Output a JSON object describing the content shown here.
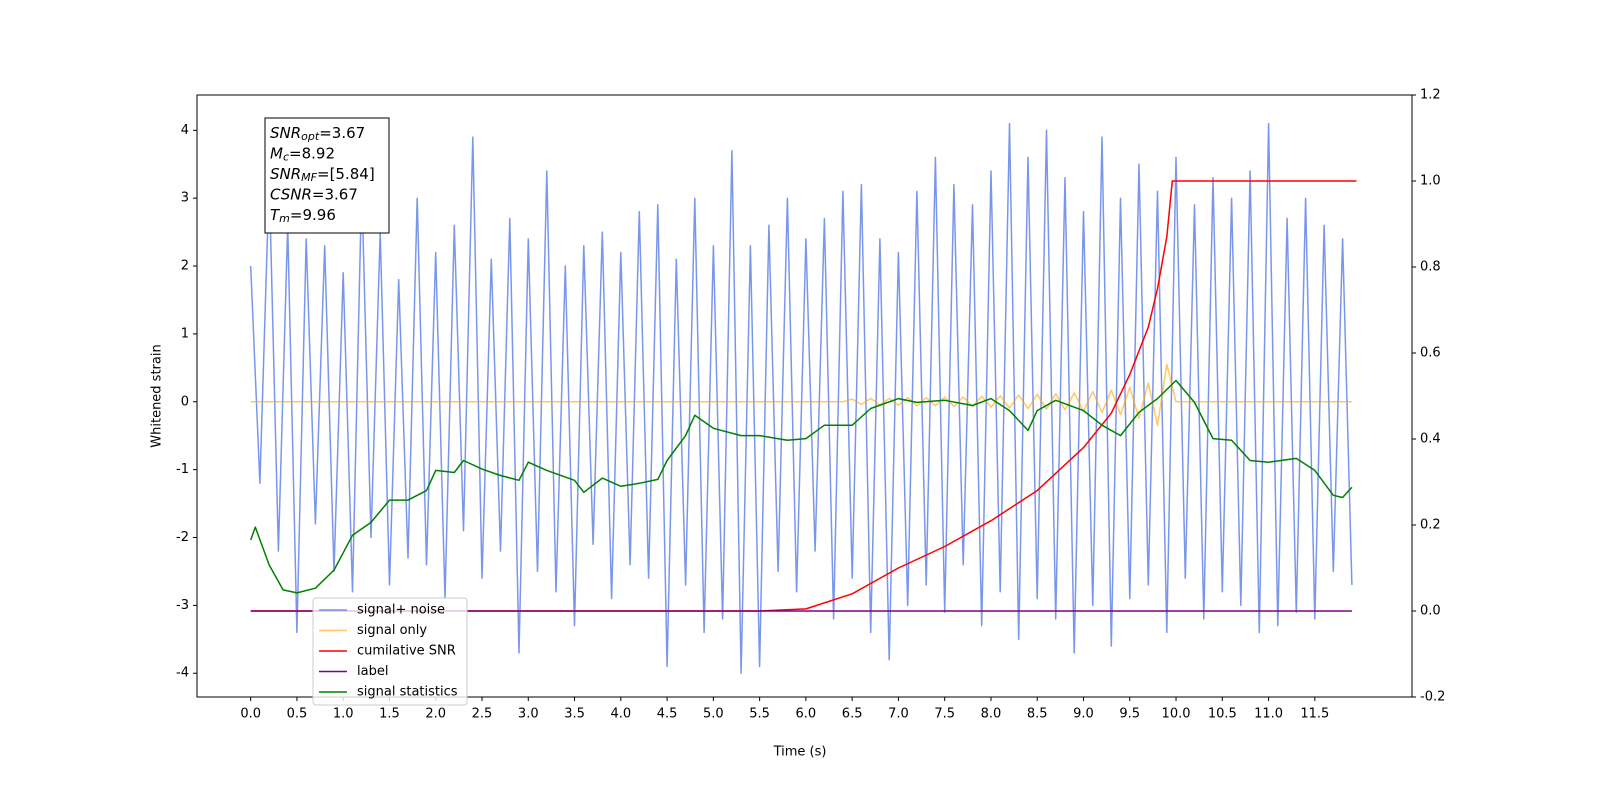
{
  "chart_data": {
    "type": "line",
    "xlabel": "Time (s)",
    "ylabel": "Whitened strain",
    "xlim": [
      -0.58,
      12.55
    ],
    "ylim": [
      -4.35,
      4.52
    ],
    "y2lim": [
      -0.2,
      1.2
    ],
    "xticks": [
      {
        "value": 0,
        "label": "0.0"
      },
      0.5,
      {
        "value": 1,
        "label": "1.0"
      },
      1.5,
      {
        "value": 2,
        "label": "2.0"
      },
      2.5,
      {
        "value": 3,
        "label": "3.0"
      },
      3.5,
      {
        "value": 4,
        "label": "4.0"
      },
      4.5,
      {
        "value": 5,
        "label": "5.0"
      },
      5.5,
      {
        "value": 6,
        "label": "6.0"
      },
      6.5,
      {
        "value": 7,
        "label": "7.0"
      },
      7.5,
      {
        "value": 8,
        "label": "8.0"
      },
      8.5,
      {
        "value": 9,
        "label": "9.0"
      },
      9.5,
      {
        "value": 10,
        "label": "10.0"
      },
      10.5,
      {
        "value": 11,
        "label": "11.0"
      },
      11.5
    ],
    "yticks": [
      -4,
      -3,
      -2,
      -1,
      0,
      1,
      2,
      3,
      4
    ],
    "y2ticks": [
      -0.2,
      {
        "value": 0,
        "label": "0.0"
      },
      0.2,
      0.4,
      0.6,
      0.8,
      {
        "value": 1,
        "label": "1.0"
      },
      1.2
    ],
    "x": [
      0,
      0.1,
      0.2,
      0.3,
      0.4,
      0.5,
      0.6,
      0.7,
      0.8,
      0.9,
      1,
      1.1,
      1.2,
      1.3,
      1.4,
      1.5,
      1.6,
      1.7,
      1.8,
      1.9,
      2,
      2.1,
      2.2,
      2.3,
      2.4,
      2.5,
      2.6,
      2.7,
      2.8,
      2.9,
      3,
      3.1,
      3.2,
      3.3,
      3.4,
      3.5,
      3.6,
      3.7,
      3.8,
      3.9,
      4,
      4.1,
      4.2,
      4.3,
      4.4,
      4.5,
      4.6,
      4.7,
      4.8,
      4.9,
      5,
      5.1,
      5.2,
      5.3,
      5.4,
      5.5,
      5.6,
      5.7,
      5.8,
      5.9,
      6,
      6.1,
      6.2,
      6.3,
      6.4,
      6.5,
      6.6,
      6.7,
      6.8,
      6.9,
      7,
      7.1,
      7.2,
      7.3,
      7.4,
      7.5,
      7.6,
      7.7,
      7.8,
      7.9,
      8,
      8.1,
      8.2,
      8.3,
      8.4,
      8.5,
      8.6,
      8.7,
      8.8,
      8.9,
      9,
      9.1,
      9.2,
      9.3,
      9.4,
      9.5,
      9.6,
      9.7,
      9.8,
      9.9,
      10,
      10.1,
      10.2,
      10.3,
      10.4,
      10.5,
      10.6,
      10.7,
      10.8,
      10.9,
      11,
      11.1,
      11.2,
      11.3,
      11.4,
      11.5,
      11.6,
      11.7,
      11.8,
      11.9
    ],
    "series": [
      {
        "name": "signal+ noise",
        "color": "#4169e1",
        "alpha": 0.7,
        "axis": "y",
        "values": [
          2.0,
          -1.2,
          3.3,
          -2.2,
          2.6,
          -3.4,
          2.4,
          -1.8,
          2.3,
          -2.5,
          1.9,
          -2.8,
          3.2,
          -2.0,
          2.5,
          -2.7,
          1.8,
          -2.3,
          3.0,
          -2.4,
          2.2,
          -2.9,
          2.6,
          -1.9,
          3.9,
          -2.6,
          2.1,
          -2.2,
          2.7,
          -3.7,
          2.4,
          -2.5,
          3.4,
          -2.8,
          2.0,
          -3.3,
          2.3,
          -2.1,
          2.5,
          -2.9,
          2.2,
          -2.4,
          2.8,
          -2.6,
          2.9,
          -3.9,
          2.1,
          -2.7,
          3.0,
          -3.4,
          2.3,
          -3.2,
          3.7,
          -4.0,
          2.3,
          -3.9,
          2.6,
          -2.5,
          3.0,
          -2.8,
          2.4,
          -2.2,
          2.7,
          -3.2,
          3.1,
          -2.6,
          3.2,
          -3.4,
          2.4,
          -3.8,
          2.2,
          -3.0,
          3.1,
          -2.7,
          3.6,
          -3.1,
          3.2,
          -2.4,
          2.9,
          -3.3,
          3.4,
          -2.8,
          4.1,
          -3.5,
          3.6,
          -2.9,
          4.0,
          -3.2,
          3.3,
          -3.7,
          2.8,
          -3.0,
          3.9,
          -3.6,
          3.0,
          -2.9,
          3.5,
          -2.7,
          3.1,
          -3.4,
          3.6,
          -2.6,
          2.9,
          -3.2,
          3.3,
          -2.8,
          3.0,
          -3.0,
          3.4,
          -3.4,
          4.1,
          -3.3,
          2.7,
          -3.1,
          3.0,
          -3.2,
          2.6,
          -2.5,
          2.4,
          -2.7
        ]
      },
      {
        "name": "signal only",
        "color": "#ffa500",
        "alpha": 0.6,
        "axis": "y",
        "values": [
          0,
          0,
          0,
          0,
          0,
          0,
          0,
          0,
          0,
          0,
          0,
          0,
          0,
          0,
          0,
          0,
          0,
          0,
          0,
          0,
          0,
          0,
          0,
          0,
          0,
          0,
          0,
          0,
          0,
          0,
          0,
          0,
          0,
          0,
          0,
          0,
          0,
          0,
          0,
          0,
          0,
          0,
          0,
          0,
          0,
          0,
          0,
          0,
          0,
          0,
          0,
          0,
          0,
          0,
          0,
          0,
          0,
          0,
          0,
          0,
          0,
          0,
          0,
          0,
          0,
          0.04,
          -0.04,
          0.05,
          -0.05,
          0.05,
          -0.05,
          0.06,
          -0.06,
          0.06,
          -0.06,
          0.07,
          -0.07,
          0.07,
          -0.07,
          0.08,
          -0.08,
          0.09,
          -0.09,
          0.1,
          -0.1,
          0.11,
          -0.11,
          0.12,
          -0.12,
          0.13,
          -0.14,
          0.15,
          -0.16,
          0.17,
          -0.19,
          0.21,
          -0.24,
          0.28,
          -0.35,
          0.55,
          0,
          0,
          0,
          0,
          0,
          0,
          0,
          0,
          0,
          0,
          0,
          0,
          0,
          0,
          0,
          0,
          0,
          0,
          0,
          0
        ]
      },
      {
        "name": "cumilative SNR",
        "color": "#ff0000",
        "axis": "y2",
        "x": [
          0,
          5.5,
          6,
          6.5,
          7,
          7.5,
          8,
          8.5,
          9,
          9.3,
          9.5,
          9.7,
          9.8,
          9.9,
          9.96,
          11.95
        ],
        "values": [
          0,
          0,
          0.005,
          0.04,
          0.1,
          0.15,
          0.21,
          0.28,
          0.38,
          0.46,
          0.55,
          0.66,
          0.75,
          0.87,
          1.0,
          1.0
        ]
      },
      {
        "name": "label",
        "color": "#800080",
        "axis": "y2",
        "x": [
          0,
          11.9
        ],
        "values": [
          0,
          0
        ]
      },
      {
        "name": "signal statistics",
        "color": "#008000",
        "axis": "y2",
        "x": [
          0,
          0.05,
          0.2,
          0.35,
          0.5,
          0.7,
          0.9,
          1.1,
          1.3,
          1.5,
          1.7,
          1.9,
          2.0,
          2.2,
          2.3,
          2.5,
          2.7,
          2.9,
          3.0,
          3.2,
          3.5,
          3.6,
          3.8,
          4.0,
          4.2,
          4.4,
          4.5,
          4.7,
          4.8,
          5.0,
          5.3,
          5.5,
          5.8,
          6.0,
          6.2,
          6.5,
          6.7,
          7.0,
          7.2,
          7.5,
          7.8,
          8.0,
          8.2,
          8.4,
          8.5,
          8.7,
          9.0,
          9.2,
          9.4,
          9.6,
          9.8,
          10.0,
          10.2,
          10.4,
          10.6,
          10.8,
          11.0,
          11.3,
          11.5,
          11.7,
          11.8,
          11.9
        ],
        "values": [
          0.165,
          0.195,
          0.107,
          0.049,
          0.042,
          0.053,
          0.095,
          0.176,
          0.206,
          0.258,
          0.258,
          0.28,
          0.327,
          0.322,
          0.35,
          0.33,
          0.315,
          0.304,
          0.346,
          0.327,
          0.304,
          0.276,
          0.309,
          0.29,
          0.297,
          0.306,
          0.35,
          0.408,
          0.455,
          0.425,
          0.408,
          0.408,
          0.397,
          0.401,
          0.432,
          0.432,
          0.471,
          0.494,
          0.485,
          0.49,
          0.478,
          0.494,
          0.466,
          0.42,
          0.466,
          0.49,
          0.466,
          0.432,
          0.408,
          0.462,
          0.494,
          0.536,
          0.485,
          0.401,
          0.397,
          0.35,
          0.346,
          0.355,
          0.327,
          0.269,
          0.264,
          0.288
        ]
      }
    ],
    "legend": "lower left",
    "annotation": [
      {
        "symbol": "SNR",
        "subscript": "opt",
        "text": "=3.67"
      },
      {
        "symbol": "M",
        "subscript": "c",
        "text": "=8.92"
      },
      {
        "symbol": "SNR",
        "subscript": "MF",
        "text": "=[5.84]"
      },
      {
        "symbol": "CSNR",
        "text": "=3.67"
      },
      {
        "symbol": "T",
        "subscript": "m",
        "text": "=9.96"
      }
    ]
  }
}
